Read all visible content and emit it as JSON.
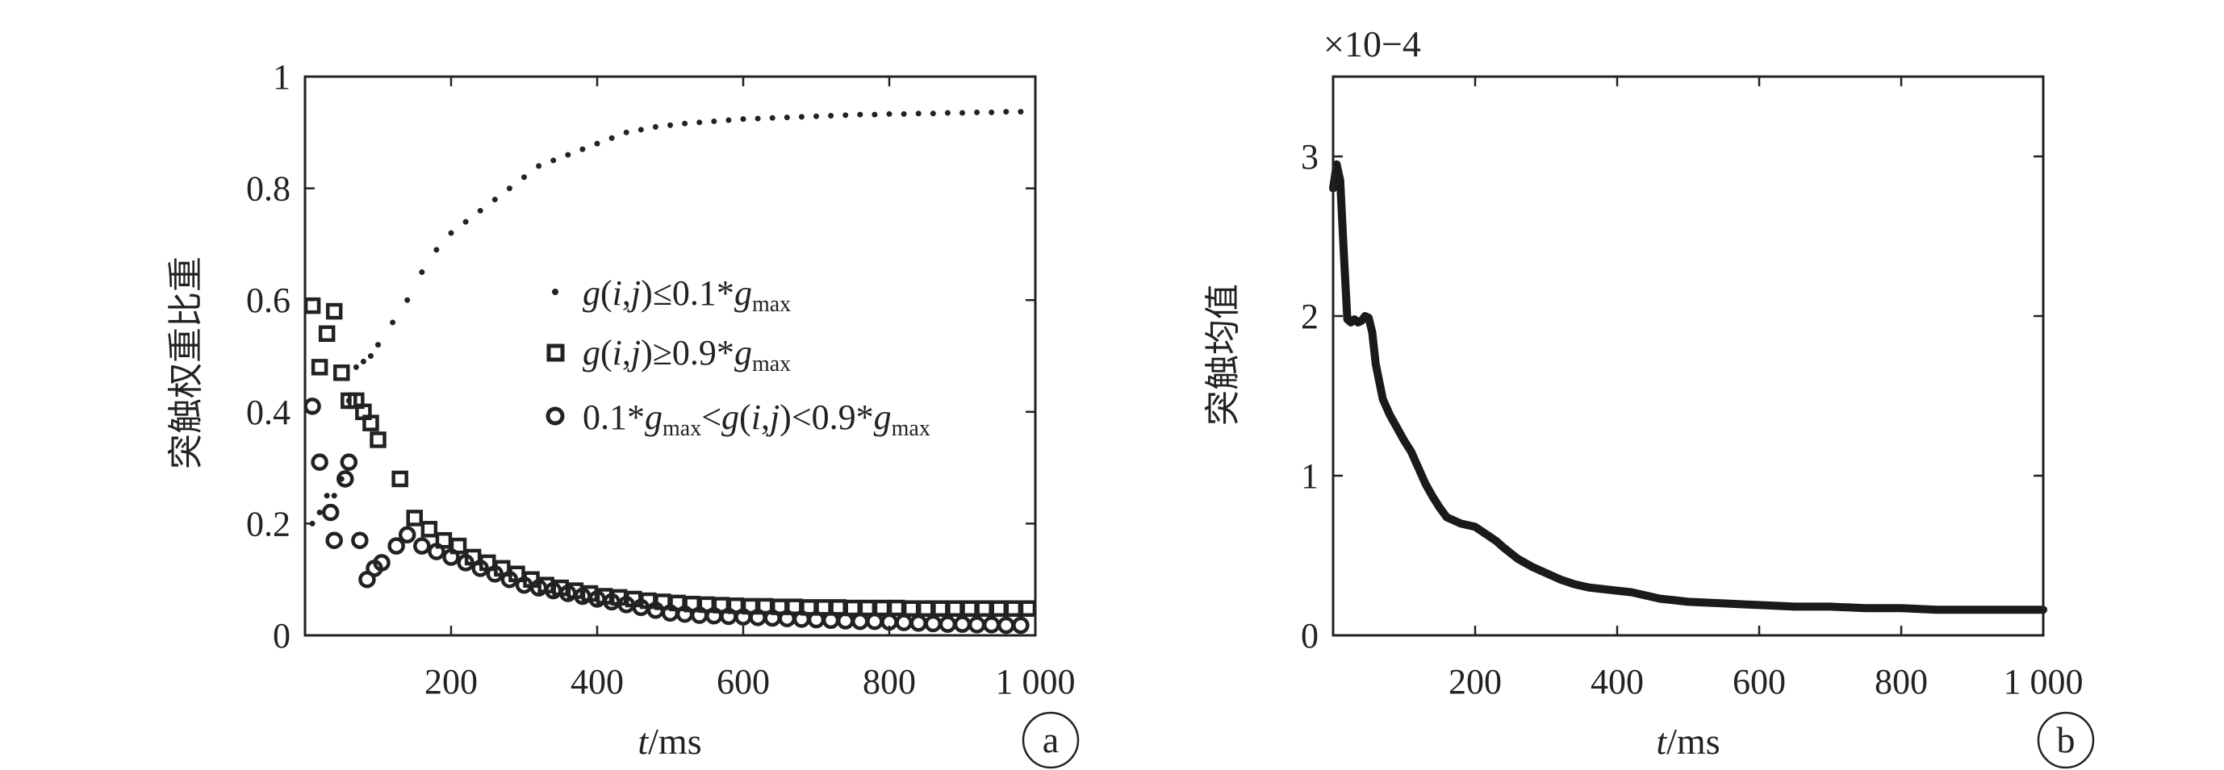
{
  "chart_data": [
    {
      "type": "scatter",
      "panel_label": "a",
      "xlabel": {
        "italic": "t",
        "rest": "/ms"
      },
      "ylabel": "突触权重比重",
      "xlim": [
        0,
        1000
      ],
      "ylim": [
        0,
        1
      ],
      "xticks": [
        200,
        400,
        600,
        800,
        1000
      ],
      "xtick_labels": [
        "200",
        "400",
        "600",
        "800",
        "1 000"
      ],
      "yticks": [
        0,
        0.2,
        0.4,
        0.6,
        0.8,
        1
      ],
      "ytick_labels": [
        "0",
        "0.2",
        "0.4",
        "0.6",
        "0.8",
        "1"
      ],
      "legend": [
        {
          "marker": "dot",
          "text": "g(i,j)≤0.1*gmax"
        },
        {
          "marker": "square",
          "text": "g(i,j)≥0.9*gmax"
        },
        {
          "marker": "circle",
          "text": "0.1*gmax<g(i,j)<0.9*gmax"
        }
      ],
      "series": [
        {
          "name": "g(i,j)≤0.1*gmax",
          "marker": "dot",
          "x": [
            10,
            20,
            30,
            40,
            50,
            60,
            70,
            80,
            90,
            100,
            120,
            140,
            160,
            180,
            200,
            220,
            240,
            260,
            280,
            300,
            320,
            340,
            360,
            380,
            400,
            420,
            440,
            460,
            480,
            500,
            520,
            540,
            560,
            580,
            600,
            620,
            640,
            660,
            680,
            700,
            720,
            740,
            760,
            780,
            800,
            820,
            840,
            860,
            880,
            900,
            920,
            940,
            960,
            980
          ],
          "y": [
            0.2,
            0.22,
            0.25,
            0.25,
            0.28,
            0.42,
            0.48,
            0.49,
            0.5,
            0.52,
            0.56,
            0.6,
            0.65,
            0.69,
            0.72,
            0.74,
            0.76,
            0.78,
            0.8,
            0.82,
            0.84,
            0.85,
            0.86,
            0.87,
            0.88,
            0.89,
            0.9,
            0.905,
            0.91,
            0.913,
            0.916,
            0.918,
            0.92,
            0.922,
            0.924,
            0.925,
            0.926,
            0.927,
            0.928,
            0.929,
            0.93,
            0.931,
            0.932,
            0.932,
            0.933,
            0.933,
            0.934,
            0.934,
            0.935,
            0.935,
            0.936,
            0.936,
            0.937,
            0.937
          ]
        },
        {
          "name": "g(i,j)≥0.9*gmax",
          "marker": "square",
          "x": [
            10,
            20,
            30,
            40,
            50,
            60,
            70,
            80,
            90,
            100,
            130,
            150,
            170,
            190,
            210,
            230,
            250,
            270,
            290,
            310,
            330,
            350,
            370,
            390,
            410,
            430,
            450,
            470,
            490,
            510,
            530,
            550,
            570,
            590,
            610,
            630,
            650,
            670,
            690,
            710,
            730,
            750,
            770,
            790,
            810,
            830,
            850,
            870,
            890,
            910,
            930,
            950,
            970,
            990
          ],
          "y": [
            0.59,
            0.48,
            0.54,
            0.58,
            0.47,
            0.42,
            0.42,
            0.4,
            0.38,
            0.35,
            0.28,
            0.21,
            0.19,
            0.17,
            0.16,
            0.14,
            0.13,
            0.12,
            0.11,
            0.1,
            0.09,
            0.085,
            0.08,
            0.075,
            0.07,
            0.068,
            0.065,
            0.062,
            0.06,
            0.058,
            0.056,
            0.055,
            0.054,
            0.053,
            0.052,
            0.052,
            0.051,
            0.051,
            0.05,
            0.05,
            0.05,
            0.049,
            0.049,
            0.049,
            0.049,
            0.048,
            0.048,
            0.048,
            0.048,
            0.048,
            0.048,
            0.048,
            0.048,
            0.048
          ]
        },
        {
          "name": "0.1*gmax<g(i,j)<0.9*gmax",
          "marker": "circle",
          "x": [
            10,
            20,
            35,
            40,
            55,
            60,
            75,
            85,
            95,
            105,
            125,
            140,
            160,
            180,
            200,
            220,
            240,
            260,
            280,
            300,
            320,
            340,
            360,
            380,
            400,
            420,
            440,
            460,
            480,
            500,
            520,
            540,
            560,
            580,
            600,
            620,
            640,
            660,
            680,
            700,
            720,
            740,
            760,
            780,
            800,
            820,
            840,
            860,
            880,
            900,
            920,
            940,
            960,
            980
          ],
          "y": [
            0.41,
            0.31,
            0.22,
            0.17,
            0.28,
            0.31,
            0.17,
            0.1,
            0.12,
            0.13,
            0.16,
            0.18,
            0.16,
            0.15,
            0.14,
            0.13,
            0.12,
            0.11,
            0.1,
            0.09,
            0.085,
            0.08,
            0.075,
            0.07,
            0.065,
            0.06,
            0.055,
            0.05,
            0.045,
            0.04,
            0.038,
            0.036,
            0.035,
            0.034,
            0.033,
            0.032,
            0.031,
            0.03,
            0.029,
            0.028,
            0.027,
            0.026,
            0.025,
            0.025,
            0.024,
            0.023,
            0.022,
            0.021,
            0.02,
            0.02,
            0.019,
            0.019,
            0.018,
            0.018
          ]
        }
      ]
    },
    {
      "type": "line",
      "panel_label": "b",
      "scale_label": "×10−4",
      "xlabel": {
        "italic": "t",
        "rest": "/ms"
      },
      "ylabel": "突触均值",
      "xlim": [
        0,
        1000
      ],
      "ylim": [
        0,
        3.5
      ],
      "xticks": [
        200,
        400,
        600,
        800,
        1000
      ],
      "xtick_labels": [
        "200",
        "400",
        "600",
        "800",
        "1 000"
      ],
      "yticks": [
        0,
        1,
        2,
        3
      ],
      "ytick_labels": [
        "0",
        "1",
        "2",
        "3"
      ],
      "series": [
        {
          "name": "突触均值",
          "x": [
            0,
            5,
            10,
            15,
            20,
            25,
            30,
            35,
            40,
            45,
            50,
            55,
            60,
            70,
            80,
            90,
            100,
            110,
            120,
            130,
            140,
            150,
            160,
            170,
            180,
            190,
            200,
            210,
            220,
            230,
            240,
            260,
            280,
            300,
            320,
            340,
            360,
            380,
            400,
            420,
            440,
            460,
            480,
            500,
            550,
            600,
            650,
            700,
            750,
            800,
            850,
            900,
            950,
            1000
          ],
          "y": [
            2.8,
            2.95,
            2.85,
            2.4,
            1.98,
            1.96,
            1.98,
            1.96,
            1.97,
            2.0,
            1.99,
            1.9,
            1.7,
            1.48,
            1.38,
            1.3,
            1.22,
            1.15,
            1.05,
            0.95,
            0.87,
            0.8,
            0.74,
            0.72,
            0.7,
            0.69,
            0.68,
            0.65,
            0.62,
            0.59,
            0.55,
            0.48,
            0.43,
            0.39,
            0.35,
            0.32,
            0.3,
            0.29,
            0.28,
            0.27,
            0.25,
            0.23,
            0.22,
            0.21,
            0.2,
            0.19,
            0.18,
            0.18,
            0.17,
            0.17,
            0.16,
            0.16,
            0.16,
            0.16
          ]
        }
      ]
    }
  ]
}
